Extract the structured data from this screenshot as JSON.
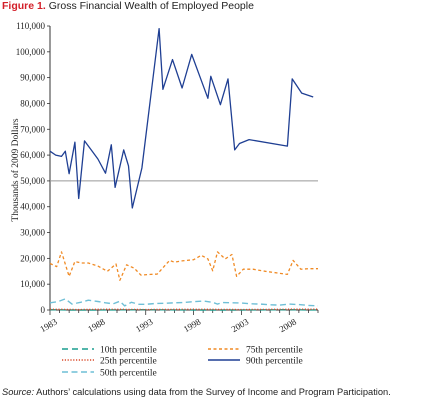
{
  "figure": {
    "number_label": "Figure 1.",
    "title": "Gross Financial Wealth of Employed People"
  },
  "source": {
    "label": "Source:",
    "text": " Authors’ calculations using data from the Survey of Income and Program Participation."
  },
  "colors": {
    "p10": "#1a9d8f",
    "p25": "#d94a2a",
    "p50": "#6fbfd6",
    "p75": "#f08a24",
    "p90": "#1f3f93",
    "axis": "#333333",
    "reference_line": "#999999"
  },
  "chart_data": {
    "type": "line",
    "title": "",
    "xlabel": "",
    "ylabel": "Thousands of 2009 Dollars",
    "xlim": [
      1983,
      2011
    ],
    "ylim": [
      0,
      110000
    ],
    "x_ticks": [
      1983,
      1988,
      1993,
      1998,
      2003,
      2008
    ],
    "y_ticks": [
      0,
      10000,
      20000,
      30000,
      40000,
      50000,
      60000,
      70000,
      80000,
      90000,
      100000,
      110000
    ],
    "y_tick_labels": [
      "0",
      "10,000",
      "20,000",
      "30,000",
      "40,000",
      "50,000",
      "60,000",
      "70,000",
      "80,000",
      "90,000",
      "100,000",
      "110,000"
    ],
    "reference_line_y": 50000,
    "grid": false,
    "legend_position": "bottom",
    "series": [
      {
        "name": "10th percentile",
        "style": "dash-long",
        "color": "#1a9d8f",
        "points": [
          [
            1983,
            100
          ],
          [
            1985,
            0
          ],
          [
            1988,
            0
          ],
          [
            1993,
            100
          ],
          [
            1998,
            0
          ],
          [
            2003,
            0
          ],
          [
            2008,
            100
          ],
          [
            2011,
            0
          ]
        ]
      },
      {
        "name": "25th percentile",
        "style": "dotted",
        "color": "#d94a2a",
        "points": [
          [
            1983,
            300
          ],
          [
            1986,
            200
          ],
          [
            1989,
            300
          ],
          [
            1993,
            200
          ],
          [
            1998,
            300
          ],
          [
            2003,
            200
          ],
          [
            2008,
            300
          ],
          [
            2011,
            300
          ]
        ]
      },
      {
        "name": "50th percentile",
        "style": "dash",
        "color": "#6fbfd6",
        "points": [
          [
            1983,
            2800
          ],
          [
            1983.8,
            3200
          ],
          [
            1984.6,
            4300
          ],
          [
            1985.3,
            2300
          ],
          [
            1986.2,
            3000
          ],
          [
            1987,
            3800
          ],
          [
            1988,
            3300
          ],
          [
            1988.8,
            2800
          ],
          [
            1989.6,
            2400
          ],
          [
            1990.3,
            3400
          ],
          [
            1990.8,
            1600
          ],
          [
            1991.5,
            3000
          ],
          [
            1992.3,
            2200
          ],
          [
            1993,
            2200
          ],
          [
            1994,
            2500
          ],
          [
            1995,
            2600
          ],
          [
            1996,
            2800
          ],
          [
            1997,
            2900
          ],
          [
            1998,
            3200
          ],
          [
            1999,
            3500
          ],
          [
            2000,
            3000
          ],
          [
            2000.5,
            2300
          ],
          [
            2001,
            2900
          ],
          [
            2002,
            2800
          ],
          [
            2003,
            2700
          ],
          [
            2004,
            2400
          ],
          [
            2005,
            2300
          ],
          [
            2006,
            2000
          ],
          [
            2007,
            1900
          ],
          [
            2008,
            2300
          ],
          [
            2009,
            2100
          ],
          [
            2010,
            1800
          ],
          [
            2011,
            1600
          ]
        ]
      },
      {
        "name": "75th percentile",
        "style": "dash-short",
        "color": "#f08a24",
        "points": [
          [
            1983,
            18000
          ],
          [
            1983.7,
            16800
          ],
          [
            1984.2,
            22500
          ],
          [
            1985,
            13000
          ],
          [
            1985.6,
            18800
          ],
          [
            1986.3,
            18200
          ],
          [
            1987,
            18200
          ],
          [
            1988,
            17000
          ],
          [
            1989,
            15000
          ],
          [
            1989.9,
            17800
          ],
          [
            1990.3,
            11500
          ],
          [
            1991,
            17500
          ],
          [
            1991.8,
            16200
          ],
          [
            1992.5,
            13500
          ],
          [
            1993.5,
            13800
          ],
          [
            1994.2,
            13900
          ],
          [
            1995.5,
            19200
          ],
          [
            1996,
            18500
          ],
          [
            1996.8,
            19000
          ],
          [
            1998,
            19500
          ],
          [
            1998.8,
            21200
          ],
          [
            1999.5,
            19800
          ],
          [
            2000,
            15200
          ],
          [
            2000.5,
            22500
          ],
          [
            2001.3,
            19800
          ],
          [
            2002,
            21500
          ],
          [
            2002.5,
            13000
          ],
          [
            2003.2,
            15800
          ],
          [
            2004.2,
            15800
          ],
          [
            2005.5,
            15000
          ],
          [
            2007,
            14200
          ],
          [
            2007.8,
            13800
          ],
          [
            2008.4,
            19200
          ],
          [
            2009.2,
            15800
          ],
          [
            2010,
            16000
          ],
          [
            2011,
            16000
          ]
        ]
      },
      {
        "name": "90th percentile",
        "style": "solid",
        "color": "#1f3f93",
        "points": [
          [
            1983,
            61500
          ],
          [
            1983.6,
            60000
          ],
          [
            1984.2,
            59500
          ],
          [
            1984.6,
            61500
          ],
          [
            1985,
            52800
          ],
          [
            1985.6,
            65000
          ],
          [
            1986,
            43200
          ],
          [
            1986.6,
            65500
          ],
          [
            1987.3,
            62000
          ],
          [
            1988,
            58500
          ],
          [
            1988.8,
            53000
          ],
          [
            1989.4,
            64000
          ],
          [
            1989.8,
            47500
          ],
          [
            1990.7,
            62000
          ],
          [
            1991.2,
            55800
          ],
          [
            1991.6,
            39500
          ],
          [
            1992.6,
            55000
          ],
          [
            1994.4,
            109000
          ],
          [
            1994.8,
            85500
          ],
          [
            1995.8,
            97000
          ],
          [
            1996.8,
            86000
          ],
          [
            1997.8,
            99000
          ],
          [
            1998.8,
            89000
          ],
          [
            1999.5,
            82000
          ],
          [
            1999.8,
            90500
          ],
          [
            2000.8,
            79500
          ],
          [
            2001.6,
            89500
          ],
          [
            2002.3,
            62000
          ],
          [
            2002.8,
            64500
          ],
          [
            2003.8,
            66000
          ],
          [
            2007.8,
            63500
          ],
          [
            2008.3,
            89500
          ],
          [
            2009.3,
            84000
          ],
          [
            2010.5,
            82500
          ]
        ]
      }
    ]
  }
}
